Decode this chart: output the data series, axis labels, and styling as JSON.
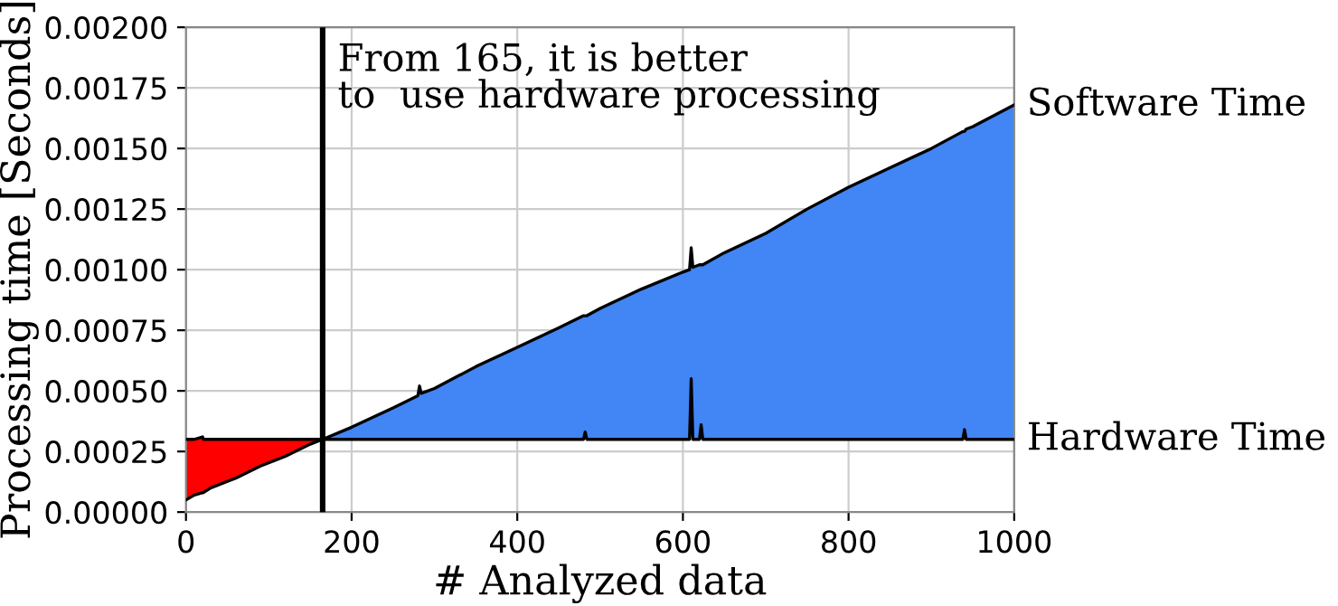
{
  "chart_data": {
    "type": "line",
    "xlabel": "# Analyzed data",
    "ylabel": "Processing time [Seconds]",
    "x": [
      0,
      10,
      20,
      21,
      30,
      60,
      90,
      120,
      150,
      165,
      200,
      250,
      280,
      282,
      284,
      300,
      350,
      400,
      450,
      480,
      482,
      484,
      500,
      550,
      600,
      608,
      610,
      612,
      620,
      622,
      624,
      650,
      700,
      750,
      800,
      850,
      900,
      938,
      940,
      942,
      950,
      1000
    ],
    "series": [
      {
        "name": "Software Time",
        "color": "#000000",
        "values": [
          5e-05,
          7e-05,
          8e-05,
          8e-05,
          0.0001,
          0.00014,
          0.00019,
          0.00023,
          0.00028,
          0.0003,
          0.00035,
          0.00043,
          0.00048,
          0.00052,
          0.00049,
          0.00051,
          0.0006,
          0.00068,
          0.00076,
          0.00081,
          0.00081,
          0.00081,
          0.00084,
          0.00092,
          0.00099,
          0.001,
          0.00109,
          0.00101,
          0.00102,
          0.00102,
          0.00102,
          0.00107,
          0.00115,
          0.00125,
          0.00134,
          0.00142,
          0.0015,
          0.00157,
          0.00157,
          0.00158,
          0.00159,
          0.00168
        ]
      },
      {
        "name": "Hardware Time",
        "color": "#000000",
        "values": [
          0.0003,
          0.0003,
          0.00031,
          0.0003,
          0.0003,
          0.0003,
          0.0003,
          0.0003,
          0.0003,
          0.0003,
          0.0003,
          0.0003,
          0.0003,
          0.0003,
          0.0003,
          0.0003,
          0.0003,
          0.0003,
          0.0003,
          0.0003,
          0.00033,
          0.0003,
          0.0003,
          0.0003,
          0.0003,
          0.0003,
          0.00055,
          0.0003,
          0.0003,
          0.00036,
          0.0003,
          0.0003,
          0.0003,
          0.0003,
          0.0003,
          0.0003,
          0.0003,
          0.0003,
          0.00034,
          0.0003,
          0.0003,
          0.0003
        ]
      },
      {
        "color": "#4285f4",
        "values": [
          null,
          null,
          null,
          null,
          null,
          null,
          null,
          null,
          null,
          null,
          null,
          null,
          null,
          null,
          null,
          null,
          null,
          null,
          null,
          null,
          null,
          null,
          null,
          null,
          null,
          null,
          null,
          null,
          null,
          null,
          null,
          null,
          null,
          null,
          null,
          null,
          null,
          null,
          null,
          null,
          null,
          null
        ],
        "lower": [
          null,
          null,
          null,
          null,
          null,
          null,
          null,
          null,
          null,
          0.0003,
          0.0003,
          0.0003,
          0.0003,
          0.0003,
          0.0003,
          0.0003,
          0.0003,
          0.0003,
          0.0003,
          0.0003,
          0.00033,
          0.0003,
          0.0003,
          0.0003,
          0.0003,
          0.0003,
          0.00055,
          0.0003,
          0.0003,
          0.00036,
          0.0003,
          0.0003,
          0.0003,
          0.0003,
          0.0003,
          0.0003,
          0.0003,
          0.0003,
          0.00034,
          0.0003,
          0.0003,
          0.0003
        ],
        "upper": [
          null,
          null,
          null,
          null,
          null,
          null,
          null,
          null,
          null,
          0.0003,
          0.00035,
          0.00043,
          0.00048,
          0.00052,
          0.00049,
          0.00051,
          0.0006,
          0.00068,
          0.00076,
          0.00081,
          0.00081,
          0.00081,
          0.00084,
          0.00092,
          0.00099,
          0.001,
          0.00109,
          0.00101,
          0.00102,
          0.00102,
          0.00102,
          0.00107,
          0.00115,
          0.00125,
          0.00134,
          0.00142,
          0.0015,
          0.00157,
          0.00157,
          0.00158,
          0.00159,
          0.00168
        ]
      },
      {
        "color": "#ff0000",
        "values": [
          null,
          null,
          null,
          null,
          null,
          null,
          null,
          null,
          null,
          null,
          null,
          null,
          null,
          null,
          null,
          null,
          null,
          null,
          null,
          null,
          null,
          null,
          null,
          null,
          null,
          null,
          null,
          null,
          null,
          null,
          null,
          null,
          null,
          null,
          null,
          null,
          null,
          null,
          null,
          null,
          null,
          null
        ],
        "lower": [
          5e-05,
          7e-05,
          8e-05,
          8e-05,
          0.0001,
          0.00014,
          0.00019,
          0.00023,
          0.00028,
          0.0003,
          null,
          null,
          null,
          null,
          null,
          null,
          null,
          null,
          null,
          null,
          null,
          null,
          null,
          null,
          null,
          null,
          null,
          null,
          null,
          null,
          null,
          null,
          null,
          null,
          null,
          null,
          null,
          null,
          null,
          null,
          null,
          null
        ],
        "upper": [
          0.0003,
          0.0003,
          0.00031,
          0.0003,
          0.0003,
          0.0003,
          0.0003,
          0.0003,
          0.0003,
          0.0003,
          null,
          null,
          null,
          null,
          null,
          null,
          null,
          null,
          null,
          null,
          null,
          null,
          null,
          null,
          null,
          null,
          null,
          null,
          null,
          null,
          null,
          null,
          null,
          null,
          null,
          null,
          null,
          null,
          null,
          null,
          null,
          null
        ]
      }
    ],
    "xlim": [
      0,
      1000
    ],
    "xticks": [
      0,
      200,
      400,
      600,
      800,
      1000
    ],
    "ylim": [
      0,
      0.002
    ],
    "yticks": [
      {
        "value": 0,
        "label": "0.00000"
      },
      {
        "value": 0.00025,
        "label": "0.00025"
      },
      {
        "value": 0.0005,
        "label": "0.00050"
      },
      {
        "value": 0.00075,
        "label": "0.00075"
      },
      {
        "value": 0.001,
        "label": "0.00100"
      },
      {
        "value": 0.00125,
        "label": "0.00125"
      },
      {
        "value": 0.0015,
        "label": "0.00150"
      },
      {
        "value": 0.00175,
        "label": "0.00175"
      },
      {
        "value": 0.002,
        "label": "0.00200"
      }
    ],
    "ref_lines": [
      {
        "axis": "x",
        "value": 165,
        "label": "From 165, it is better\nto  use hardware processing",
        "color": "#000000"
      }
    ],
    "grid": true
  }
}
